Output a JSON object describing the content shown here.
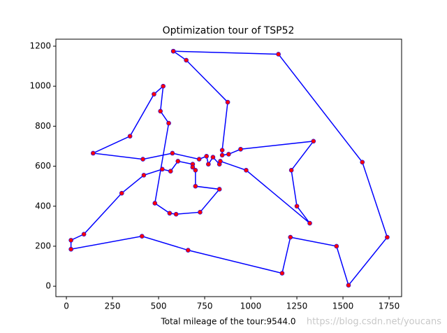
{
  "chart_data": {
    "type": "line",
    "title": "Optimization tour of TSP52",
    "xlabel": "Total mileage of the tour:9544.0",
    "watermark": "https://blog.csdn.net/youcans",
    "xlim": [
      -57,
      1818
    ],
    "ylim": [
      -52,
      1235
    ],
    "xticks": [
      0,
      250,
      500,
      750,
      1000,
      1250,
      1500,
      1750
    ],
    "yticks": [
      0,
      200,
      400,
      600,
      800,
      1000,
      1200
    ],
    "series": [
      {
        "color": "blue",
        "marker_color": "red",
        "x": [
          580,
          1150,
          1605,
          1740,
          1530,
          1465,
          1215,
          1170,
          660,
          410,
          25,
          25,
          95,
          300,
          420,
          520,
          565,
          605,
          685,
          685,
          700,
          700,
          830,
          725,
          595,
          560,
          480,
          555,
          510,
          525,
          475,
          345,
          145,
          415,
          575,
          720,
          760,
          770,
          795,
          830,
          835,
          975,
          1320,
          1250,
          1220,
          1340,
          945,
          880,
          845,
          845,
          875,
          650,
          580
        ],
        "y": [
          1175,
          1160,
          620,
          245,
          5,
          200,
          245,
          65,
          180,
          250,
          185,
          230,
          260,
          465,
          555,
          585,
          575,
          625,
          610,
          595,
          580,
          500,
          485,
          370,
          360,
          365,
          415,
          815,
          875,
          1000,
          960,
          750,
          665,
          635,
          665,
          635,
          650,
          610,
          645,
          610,
          625,
          580,
          315,
          400,
          580,
          725,
          685,
          660,
          655,
          680,
          920,
          1130,
          1175
        ]
      }
    ]
  }
}
